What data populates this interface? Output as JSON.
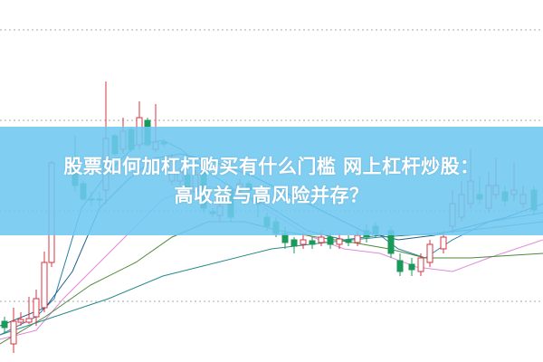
{
  "headline": {
    "line1": "股票如何加杠杆购买有什么门槛 网上杠杆炒股：",
    "line2": "高收益与高风险并存？"
  },
  "colors": {
    "banner": "#6ec8f0",
    "candle_up": "#d9333f",
    "candle_down": "#1a9a5a",
    "grid": "#aaaaaa",
    "ma_lines": [
      "#2a7fa8",
      "#1f5f8a",
      "#e08ad8",
      "#4a8a3a",
      "#2a8a8a"
    ]
  }
}
